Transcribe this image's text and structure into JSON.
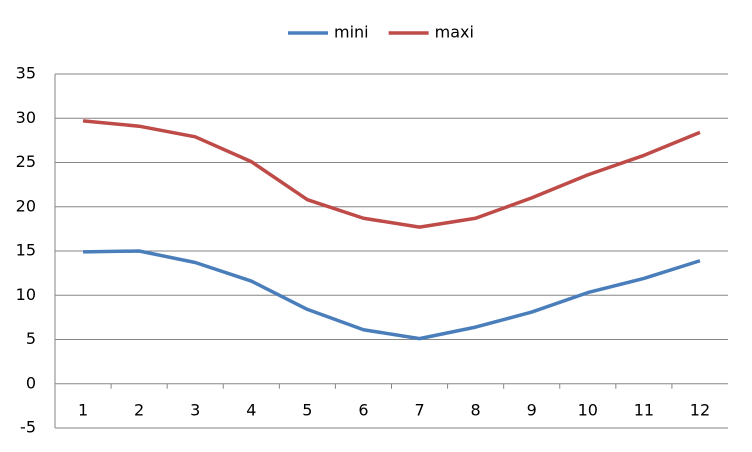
{
  "chart_data": {
    "type": "line",
    "categories": [
      "1",
      "2",
      "3",
      "4",
      "5",
      "6",
      "7",
      "8",
      "9",
      "10",
      "11",
      "12"
    ],
    "series": [
      {
        "name": "mini",
        "color": "#4a7ebb",
        "values": [
          14.9,
          15.0,
          13.7,
          11.6,
          8.4,
          6.1,
          5.1,
          6.4,
          8.1,
          10.3,
          11.9,
          13.9
        ]
      },
      {
        "name": "maxi",
        "color": "#be4b48",
        "values": [
          29.7,
          29.1,
          27.9,
          25.1,
          20.8,
          18.7,
          17.7,
          18.7,
          21.0,
          23.6,
          25.8,
          28.4
        ]
      }
    ],
    "ylim": [
      -5,
      35
    ],
    "yticks": [
      -5,
      0,
      5,
      10,
      15,
      20,
      25,
      30,
      35
    ],
    "grid": true,
    "legend": "top"
  }
}
